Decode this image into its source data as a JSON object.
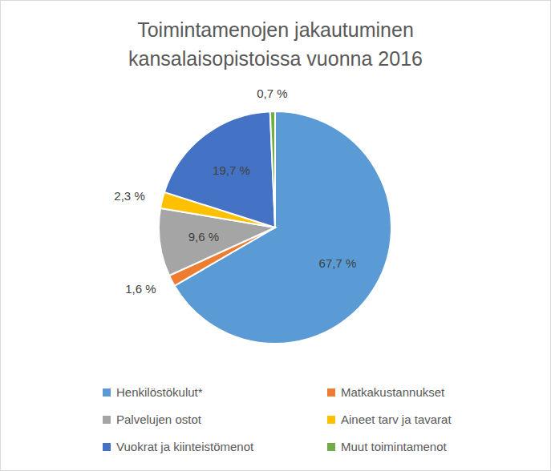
{
  "chart_data": {
    "type": "pie",
    "title": "Toimintamenojen jakautuminen kansalaisopistoissa vuonna 2016",
    "categories": [
      "Henkilöstökulut*",
      "Matkakustannukset",
      "Palvelujen ostot",
      "Aineet tarv ja tavarat",
      "Vuokrat ja kiinteistömenot",
      "Muut toimintamenot"
    ],
    "values": [
      67.7,
      1.6,
      9.6,
      2.3,
      19.7,
      0.7
    ],
    "value_labels": [
      "67,7 %",
      "1,6 %",
      "9,6 %",
      "2,3 %",
      "19,7 %",
      "0,7 %"
    ],
    "colors": [
      "#5b9bd5",
      "#ed7d31",
      "#a5a5a5",
      "#ffc000",
      "#4472c4",
      "#70ad47"
    ],
    "data_labels": true,
    "legend": "bottom"
  }
}
